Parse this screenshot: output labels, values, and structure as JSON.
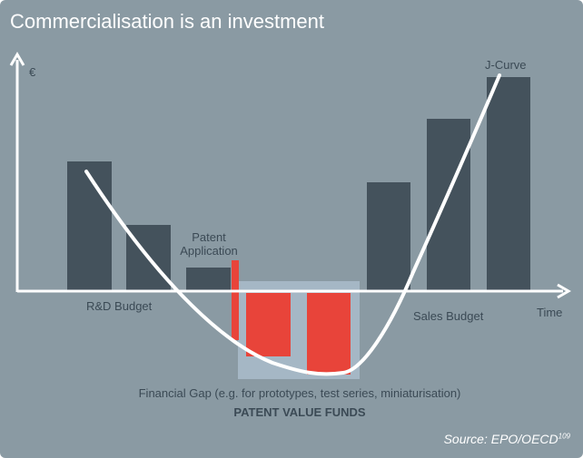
{
  "title": "Commercialisation is an investment",
  "source": {
    "text": "Source: EPO/OECD",
    "superscript": "109"
  },
  "axes": {
    "y_label": "€",
    "x_label": "Time"
  },
  "labels": {
    "rd_budget": "R&D Budget",
    "patent_application_line1": "Patent",
    "patent_application_line2": "Application",
    "j_curve": "J-Curve",
    "sales_budget": "Sales Budget",
    "financial_gap": "Financial Gap (e.g. for prototypes, test series, miniaturisation)",
    "patent_value_funds": "PATENT VALUE FUNDS"
  },
  "colors": {
    "background": "#8a9aa3",
    "bars": "#44525c",
    "gap_bars": "#e8443a",
    "funds_box": "#a9bccb",
    "curve": "#ffffff"
  }
}
